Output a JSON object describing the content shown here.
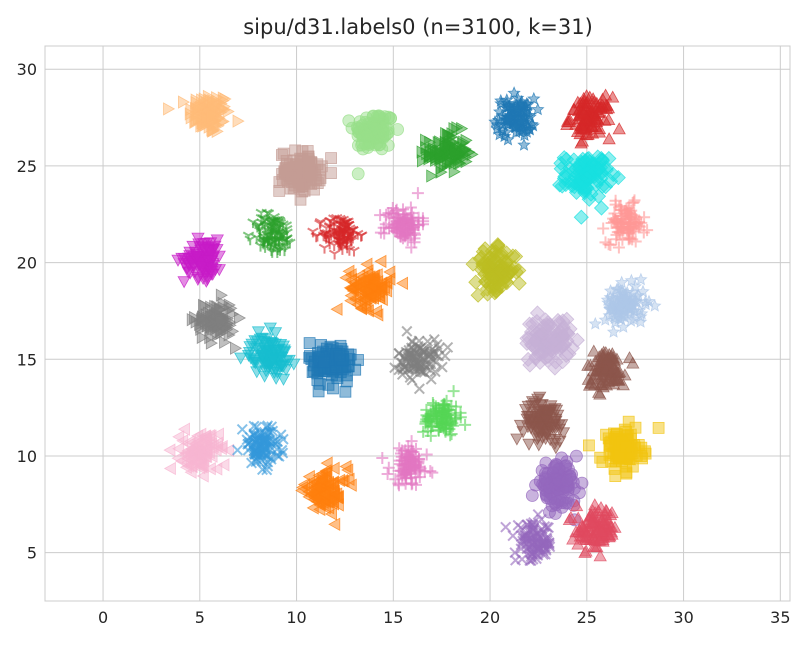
{
  "chart_data": {
    "type": "scatter",
    "title": "sipu/d31.labels0 (n=3100, k=31)",
    "xlabel": "",
    "ylabel": "",
    "xlim": [
      -3,
      35.5
    ],
    "ylim": [
      2.5,
      31.2
    ],
    "x_ticks": [
      0,
      5,
      10,
      15,
      20,
      25,
      30,
      35
    ],
    "y_ticks": [
      5,
      10,
      15,
      20,
      25,
      30
    ],
    "grid": true,
    "legend": "none",
    "n_points": 3100,
    "k_clusters": 31,
    "clusters": [
      {
        "cx": 5.5,
        "cy": 27.7,
        "spread": 0.85,
        "color": "#ffbb78",
        "marker": "triangle-right"
      },
      {
        "cx": 14.0,
        "cy": 26.8,
        "spread": 0.85,
        "color": "#98df8a",
        "marker": "circle"
      },
      {
        "cx": 17.8,
        "cy": 25.7,
        "spread": 0.85,
        "color": "#2ca02c",
        "marker": "triangle-right"
      },
      {
        "cx": 21.3,
        "cy": 27.5,
        "spread": 0.8,
        "color": "#1f77b4",
        "marker": "star"
      },
      {
        "cx": 25.2,
        "cy": 27.5,
        "spread": 0.85,
        "color": "#d62728",
        "marker": "triangle-up"
      },
      {
        "cx": 10.2,
        "cy": 24.7,
        "spread": 0.85,
        "color": "#c49c94",
        "marker": "square"
      },
      {
        "cx": 25.0,
        "cy": 24.5,
        "spread": 0.9,
        "color": "#17e0e0",
        "marker": "diamond"
      },
      {
        "cx": 27.0,
        "cy": 22.0,
        "spread": 0.8,
        "color": "#ff9896",
        "marker": "plus"
      },
      {
        "cx": 15.5,
        "cy": 22.0,
        "spread": 0.75,
        "color": "#e377c2",
        "marker": "plus"
      },
      {
        "cx": 12.3,
        "cy": 21.5,
        "spread": 0.75,
        "color": "#d62728",
        "marker": "tri-down"
      },
      {
        "cx": 8.8,
        "cy": 21.5,
        "spread": 0.85,
        "color": "#2ca02c",
        "marker": "tri-down"
      },
      {
        "cx": 5.2,
        "cy": 20.2,
        "spread": 0.8,
        "color": "#c71bc7",
        "marker": "triangle-down"
      },
      {
        "cx": 13.8,
        "cy": 18.7,
        "spread": 0.85,
        "color": "#ff7f0e",
        "marker": "triangle-left"
      },
      {
        "cx": 20.3,
        "cy": 19.6,
        "spread": 0.85,
        "color": "#bcbd22",
        "marker": "diamond"
      },
      {
        "cx": 5.8,
        "cy": 17.0,
        "spread": 0.8,
        "color": "#7f7f7f",
        "marker": "triangle-right"
      },
      {
        "cx": 27.0,
        "cy": 17.8,
        "spread": 0.85,
        "color": "#aec7e8",
        "marker": "star"
      },
      {
        "cx": 23.0,
        "cy": 16.0,
        "spread": 0.95,
        "color": "#c5b0d5",
        "marker": "diamond"
      },
      {
        "cx": 8.6,
        "cy": 15.2,
        "spread": 0.8,
        "color": "#17becf",
        "marker": "triangle-down"
      },
      {
        "cx": 11.8,
        "cy": 14.8,
        "spread": 0.9,
        "color": "#1f77b4",
        "marker": "square"
      },
      {
        "cx": 16.3,
        "cy": 15.0,
        "spread": 0.85,
        "color": "#7f7f7f",
        "marker": "x"
      },
      {
        "cx": 26.0,
        "cy": 14.5,
        "spread": 0.8,
        "color": "#8c564b",
        "marker": "triangle-up"
      },
      {
        "cx": 22.8,
        "cy": 11.8,
        "spread": 0.85,
        "color": "#8c564b",
        "marker": "triangle-down"
      },
      {
        "cx": 17.5,
        "cy": 12.0,
        "spread": 0.75,
        "color": "#55d655",
        "marker": "plus"
      },
      {
        "cx": 26.8,
        "cy": 10.3,
        "spread": 0.85,
        "color": "#f1c40f",
        "marker": "square"
      },
      {
        "cx": 5.0,
        "cy": 10.2,
        "spread": 0.8,
        "color": "#f7b6d2",
        "marker": "triangle-left"
      },
      {
        "cx": 8.2,
        "cy": 10.5,
        "spread": 0.8,
        "color": "#3498db",
        "marker": "x"
      },
      {
        "cx": 15.8,
        "cy": 9.5,
        "spread": 0.8,
        "color": "#e377c2",
        "marker": "plus"
      },
      {
        "cx": 11.5,
        "cy": 8.2,
        "spread": 0.9,
        "color": "#ff7f0e",
        "marker": "triangle-left"
      },
      {
        "cx": 23.5,
        "cy": 8.5,
        "spread": 0.85,
        "color": "#9467bd",
        "marker": "circle"
      },
      {
        "cx": 22.3,
        "cy": 5.5,
        "spread": 0.8,
        "color": "#9467bd",
        "marker": "x"
      },
      {
        "cx": 25.5,
        "cy": 6.2,
        "spread": 0.85,
        "color": "#e04a5f",
        "marker": "triangle-up"
      }
    ]
  }
}
